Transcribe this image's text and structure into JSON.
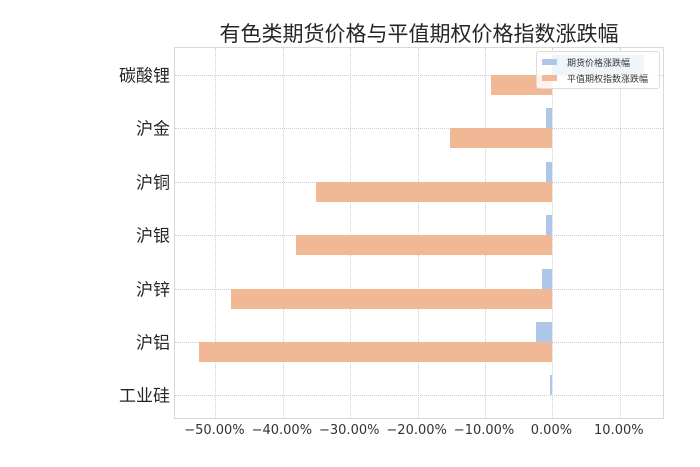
{
  "chart_data": {
    "type": "bar",
    "orientation": "horizontal",
    "title": "有色类期货价格与平值期权价格指数涨跌幅",
    "xlabel": "",
    "ylabel": "",
    "categories": [
      "碳酸锂",
      "沪金",
      "沪铜",
      "沪银",
      "沪锌",
      "沪铝",
      "工业硅"
    ],
    "series": [
      {
        "name": "期货价格涨跌幅",
        "color": "#aec7e8",
        "values": [
          13.6,
          -0.9,
          -1.0,
          -1.0,
          -1.6,
          -2.5,
          -0.3
        ]
      },
      {
        "name": "平值期权指数涨跌幅",
        "color": "#f0b895",
        "values": [
          -9.1,
          -15.2,
          -35.1,
          -38.0,
          -47.7,
          -52.5,
          0.0
        ]
      }
    ],
    "xlim": [
      -56.0,
      16.7
    ],
    "xticks": [
      -50,
      -40,
      -30,
      -20,
      -10,
      0,
      10
    ],
    "xtick_labels": [
      "−50.00%",
      "−40.00%",
      "−30.00%",
      "−20.00%",
      "−10.00%",
      "0.00%",
      "10.00%"
    ],
    "grid": true,
    "legend_position": "upper right",
    "unit": "%"
  },
  "legend": {
    "items": [
      {
        "label": "期货价格涨跌幅",
        "color": "#aec7e8"
      },
      {
        "label": "平值期权指数涨跌幅",
        "color": "#f0b895"
      }
    ]
  }
}
